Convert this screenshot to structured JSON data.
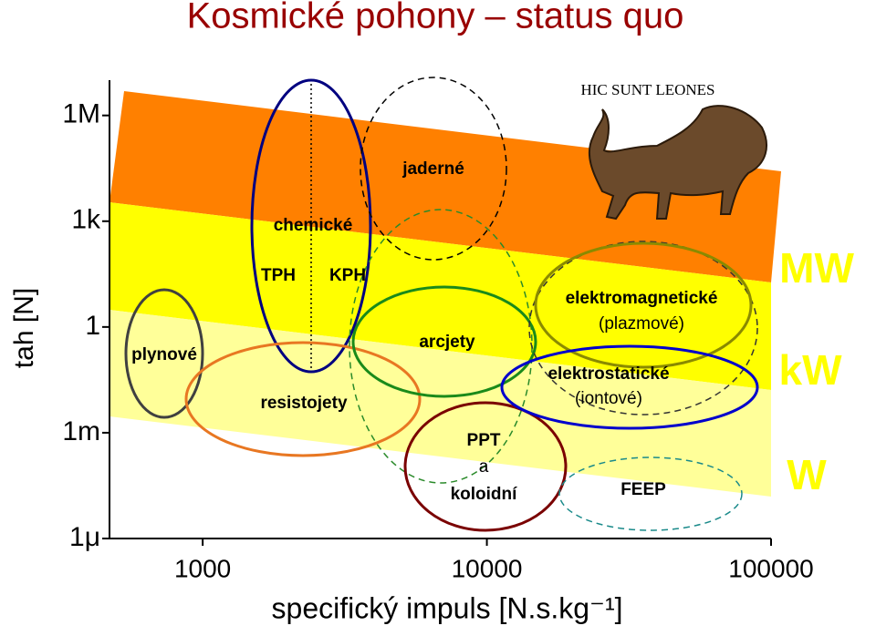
{
  "chart_data": {
    "type": "log-log",
    "title": "Kosmické pohony – status quo",
    "x_label": "specifický impuls [N.s.kg⁻¹]",
    "y_label": "tah [N]",
    "x_log": true,
    "y_log": true,
    "xlim": [
      470,
      100000
    ],
    "ylim": [
      1e-06,
      10000000
    ],
    "xticks": [
      1000,
      10000,
      100000
    ],
    "yticks": [
      {
        "value": 1000000,
        "label": "1M"
      },
      {
        "value": 1000,
        "label": "1k"
      },
      1,
      {
        "value": 0.001,
        "label": "1m"
      },
      {
        "value": 1e-06,
        "label": "1μ"
      }
    ],
    "power_bands": [
      "MW",
      "kW",
      "W"
    ],
    "annotation": "HIC SUNT LEONES",
    "regions": [
      [
        "plynové"
      ],
      [
        "chemické",
        "TPH",
        "KPH"
      ],
      [
        "resistojety"
      ],
      [
        "jaderné"
      ],
      [
        "arcjety"
      ],
      [
        "PPT",
        "a",
        "koloidní"
      ],
      [
        "elektromagnetické",
        "(plazmové)"
      ],
      [
        "elektrostatické",
        "(iontové)"
      ],
      [
        "FEEP"
      ]
    ]
  }
}
